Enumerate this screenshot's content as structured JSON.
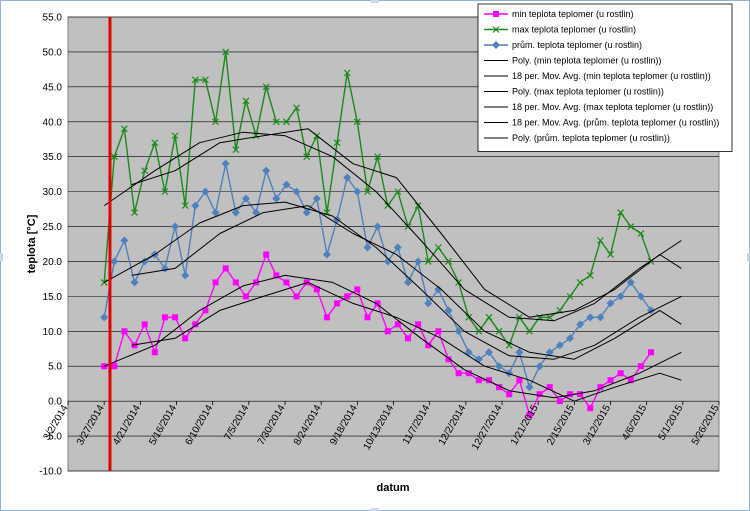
{
  "chart_data": {
    "type": "line",
    "title": "",
    "xlabel": "datum",
    "ylabel": "teplota [°C]",
    "ylim": [
      -10,
      55
    ],
    "y_ticks": [
      "55.0",
      "50.0",
      "45.0",
      "40.0",
      "35.0",
      "30.0",
      "25.0",
      "20.0",
      "15.0",
      "10.0",
      "5.0",
      "0.0",
      "-5.0",
      "-10.0"
    ],
    "x_ticks": [
      "3/2/2014",
      "3/27/2014",
      "4/21/2014",
      "5/16/2014",
      "6/10/2014",
      "7/5/2014",
      "7/30/2014",
      "8/24/2014",
      "9/18/2014",
      "10/13/2014",
      "11/7/2014",
      "12/2/2014",
      "12/27/2014",
      "1/21/2015",
      "2/15/2015",
      "3/12/2015",
      "4/6/2015",
      "5/1/2015",
      "5/26/2015"
    ],
    "x_range": [
      "2014-03-02",
      "2015-05-26"
    ],
    "grid": "horizontal",
    "plot_background": "#c0c0c0",
    "legend_position": "top-right",
    "marker_line": {
      "date": "2014-03-31",
      "color": "#e00000"
    },
    "series": [
      {
        "name": "min teplota teplomer (u rostlin)",
        "color": "#ff00ff",
        "marker": "square",
        "x": [
          "2014-03-27",
          "2014-04-03",
          "2014-04-10",
          "2014-04-17",
          "2014-04-24",
          "2014-05-01",
          "2014-05-08",
          "2014-05-15",
          "2014-05-22",
          "2014-05-29",
          "2014-06-05",
          "2014-06-12",
          "2014-06-19",
          "2014-06-26",
          "2014-07-03",
          "2014-07-10",
          "2014-07-17",
          "2014-07-24",
          "2014-07-31",
          "2014-08-07",
          "2014-08-14",
          "2014-08-21",
          "2014-08-28",
          "2014-09-04",
          "2014-09-11",
          "2014-09-18",
          "2014-09-25",
          "2014-10-02",
          "2014-10-09",
          "2014-10-16",
          "2014-10-23",
          "2014-10-30",
          "2014-11-06",
          "2014-11-13",
          "2014-11-20",
          "2014-11-27",
          "2014-12-04",
          "2014-12-11",
          "2014-12-18",
          "2014-12-25",
          "2015-01-01",
          "2015-01-08",
          "2015-01-15",
          "2015-01-22",
          "2015-01-29",
          "2015-02-05",
          "2015-02-12",
          "2015-02-19",
          "2015-02-26",
          "2015-03-05",
          "2015-03-12",
          "2015-03-19",
          "2015-03-26",
          "2015-04-02",
          "2015-04-09"
        ],
        "values": [
          5,
          5,
          10,
          8,
          11,
          7,
          12,
          12,
          9,
          11,
          13,
          17,
          19,
          17,
          15,
          17,
          21,
          18,
          17,
          15,
          17,
          16,
          12,
          14,
          15,
          16,
          12,
          14,
          10,
          11,
          9,
          11,
          8,
          10,
          6,
          4,
          4,
          3,
          3,
          2,
          1,
          3,
          -2,
          1,
          2,
          0,
          1,
          1,
          -1,
          2,
          3,
          4,
          3,
          5,
          7
        ]
      },
      {
        "name": "max teplota teplomer (u rostlin)",
        "color": "#1a8a1a",
        "marker": "x",
        "x": [
          "2014-03-27",
          "2014-04-03",
          "2014-04-10",
          "2014-04-17",
          "2014-04-24",
          "2014-05-01",
          "2014-05-08",
          "2014-05-15",
          "2014-05-22",
          "2014-05-29",
          "2014-06-05",
          "2014-06-12",
          "2014-06-19",
          "2014-06-26",
          "2014-07-03",
          "2014-07-10",
          "2014-07-17",
          "2014-07-24",
          "2014-07-31",
          "2014-08-07",
          "2014-08-14",
          "2014-08-21",
          "2014-08-28",
          "2014-09-04",
          "2014-09-11",
          "2014-09-18",
          "2014-09-25",
          "2014-10-02",
          "2014-10-09",
          "2014-10-16",
          "2014-10-23",
          "2014-10-30",
          "2014-11-06",
          "2014-11-13",
          "2014-11-20",
          "2014-11-27",
          "2014-12-04",
          "2014-12-11",
          "2014-12-18",
          "2014-12-25",
          "2015-01-01",
          "2015-01-08",
          "2015-01-15",
          "2015-01-22",
          "2015-01-29",
          "2015-02-05",
          "2015-02-12",
          "2015-02-19",
          "2015-02-26",
          "2015-03-05",
          "2015-03-12",
          "2015-03-19",
          "2015-03-26",
          "2015-04-02",
          "2015-04-09"
        ],
        "values": [
          17,
          35,
          39,
          27,
          33,
          37,
          30,
          38,
          28,
          46,
          46,
          40,
          50,
          36,
          43,
          38,
          45,
          40,
          40,
          42,
          35,
          38,
          27,
          37,
          47,
          40,
          30,
          35,
          28,
          30,
          25,
          28,
          20,
          22,
          20,
          17,
          12,
          10,
          12,
          10,
          8,
          12,
          10,
          12,
          12,
          13,
          15,
          17,
          18,
          23,
          21,
          27,
          25,
          24,
          20
        ]
      },
      {
        "name": "prům. teplota teplomer (u rostlin)",
        "color": "#4f81bd",
        "marker": "diamond",
        "x": [
          "2014-03-27",
          "2014-04-03",
          "2014-04-10",
          "2014-04-17",
          "2014-04-24",
          "2014-05-01",
          "2014-05-08",
          "2014-05-15",
          "2014-05-22",
          "2014-05-29",
          "2014-06-05",
          "2014-06-12",
          "2014-06-19",
          "2014-06-26",
          "2014-07-03",
          "2014-07-10",
          "2014-07-17",
          "2014-07-24",
          "2014-07-31",
          "2014-08-07",
          "2014-08-14",
          "2014-08-21",
          "2014-08-28",
          "2014-09-04",
          "2014-09-11",
          "2014-09-18",
          "2014-09-25",
          "2014-10-02",
          "2014-10-09",
          "2014-10-16",
          "2014-10-23",
          "2014-10-30",
          "2014-11-06",
          "2014-11-13",
          "2014-11-20",
          "2014-11-27",
          "2014-12-04",
          "2014-12-11",
          "2014-12-18",
          "2014-12-25",
          "2015-01-01",
          "2015-01-08",
          "2015-01-15",
          "2015-01-22",
          "2015-01-29",
          "2015-02-05",
          "2015-02-12",
          "2015-02-19",
          "2015-02-26",
          "2015-03-05",
          "2015-03-12",
          "2015-03-19",
          "2015-03-26",
          "2015-04-02",
          "2015-04-09"
        ],
        "values": [
          12,
          20,
          23,
          17,
          20,
          21,
          19,
          25,
          18,
          28,
          30,
          27,
          34,
          27,
          29,
          27,
          33,
          29,
          31,
          30,
          27,
          29,
          21,
          26,
          32,
          30,
          22,
          25,
          20,
          22,
          17,
          20,
          14,
          16,
          13,
          10,
          7,
          6,
          7,
          5,
          4,
          7,
          2,
          5,
          7,
          8,
          9,
          11,
          12,
          12,
          14,
          15,
          17,
          15,
          13
        ]
      },
      {
        "name": "Poly. (min teplota teplomer (u rostlin))",
        "color": "#000000",
        "marker": "none",
        "x": [
          "2014-03-27",
          "2014-05-01",
          "2014-06-01",
          "2014-07-01",
          "2014-07-30",
          "2014-09-01",
          "2014-10-01",
          "2014-11-01",
          "2014-12-01",
          "2015-01-01",
          "2015-02-01",
          "2015-03-01",
          "2015-04-01",
          "2015-04-30"
        ],
        "values": [
          5,
          8,
          13,
          16.5,
          18,
          17,
          14,
          9,
          4.5,
          1.5,
          0.5,
          1.5,
          4,
          7
        ]
      },
      {
        "name": "18 per. Mov. Avg. (min teplota teplomer (u rostlin))",
        "color": "#000000",
        "marker": "none",
        "x": [
          "2014-04-15",
          "2014-05-15",
          "2014-06-15",
          "2014-07-15",
          "2014-08-15",
          "2014-09-15",
          "2014-10-15",
          "2014-11-15",
          "2014-12-15",
          "2015-01-15",
          "2015-02-15",
          "2015-03-15",
          "2015-04-15",
          "2015-04-30"
        ],
        "values": [
          8,
          9,
          13,
          15,
          17,
          14,
          12,
          9,
          5,
          3,
          0,
          2,
          4,
          3
        ]
      },
      {
        "name": "Poly. (max teplota teplomer (u rostlin))",
        "color": "#000000",
        "marker": "none",
        "x": [
          "2014-03-27",
          "2014-05-01",
          "2014-06-01",
          "2014-07-01",
          "2014-07-30",
          "2014-09-01",
          "2014-10-01",
          "2014-11-01",
          "2014-12-01",
          "2015-01-01",
          "2015-02-01",
          "2015-03-01",
          "2015-04-01",
          "2015-04-30"
        ],
        "values": [
          28,
          33,
          37,
          38.5,
          38,
          35,
          30,
          23,
          16,
          12,
          11.5,
          14,
          19,
          23
        ]
      },
      {
        "name": "18 per. Mov. Avg. (max teplota teplomer (u rostlin))",
        "color": "#000000",
        "marker": "none",
        "x": [
          "2014-04-15",
          "2014-05-15",
          "2014-06-15",
          "2014-07-15",
          "2014-08-15",
          "2014-09-15",
          "2014-10-15",
          "2014-11-15",
          "2014-12-15",
          "2015-01-15",
          "2015-02-15",
          "2015-03-15",
          "2015-04-15",
          "2015-04-30"
        ],
        "values": [
          31,
          33,
          37,
          38,
          39,
          34,
          32,
          24,
          16,
          12,
          13,
          16,
          21,
          19
        ]
      },
      {
        "name": "18 per. Mov. Avg. (prům. teplota teplomer (u rostlin))",
        "color": "#000000",
        "marker": "none",
        "x": [
          "2014-04-15",
          "2014-05-15",
          "2014-06-15",
          "2014-07-15",
          "2014-08-15",
          "2014-09-15",
          "2014-10-15",
          "2014-11-15",
          "2014-12-15",
          "2015-01-15",
          "2015-02-15",
          "2015-03-15",
          "2015-04-15",
          "2015-04-30"
        ],
        "values": [
          18,
          19,
          24,
          27,
          28,
          24,
          21,
          16,
          10,
          7,
          6,
          9,
          13,
          11
        ]
      },
      {
        "name": "Poly. (prům. teplota teplomer (u rostlin))",
        "color": "#000000",
        "marker": "none",
        "x": [
          "2014-03-27",
          "2014-05-01",
          "2014-06-01",
          "2014-07-01",
          "2014-07-30",
          "2014-09-01",
          "2014-10-01",
          "2014-11-01",
          "2014-12-01",
          "2015-01-01",
          "2015-02-01",
          "2015-03-01",
          "2015-04-01",
          "2015-04-30"
        ],
        "values": [
          17,
          21,
          25.5,
          28,
          28.5,
          26.5,
          22,
          16,
          10,
          6.5,
          6,
          8,
          12,
          15
        ]
      }
    ]
  }
}
